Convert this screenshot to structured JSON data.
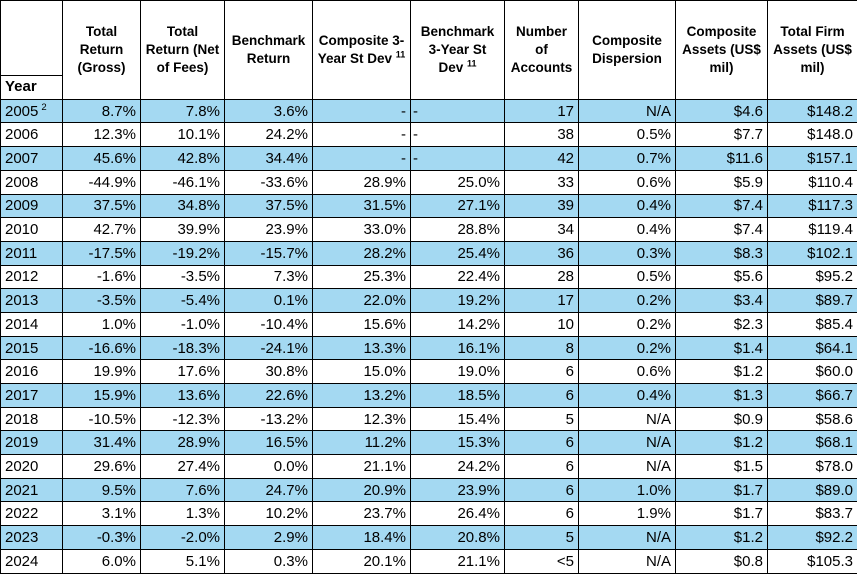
{
  "colors": {
    "row_highlight": "#a4d9f2",
    "border": "#000000",
    "text": "#000000",
    "background": "#ffffff"
  },
  "table": {
    "columns": [
      {
        "label": "Year",
        "sup": ""
      },
      {
        "label": "Total Return (Gross)",
        "sup": ""
      },
      {
        "label": "Total Return (Net of Fees)",
        "sup": ""
      },
      {
        "label": "Benchmark Return",
        "sup": ""
      },
      {
        "label": "Composite 3-Year St Dev",
        "sup": "11"
      },
      {
        "label": "Benchmark 3-Year St Dev",
        "sup": "11"
      },
      {
        "label": "Number of Accounts",
        "sup": ""
      },
      {
        "label": "Composite Dispersion",
        "sup": ""
      },
      {
        "label": "Composite Assets (US$ mil)",
        "sup": ""
      },
      {
        "label": "Total Firm Assets (US$ mil)",
        "sup": ""
      }
    ],
    "rows": [
      {
        "year": "2005",
        "year_sup": "2",
        "highlight": true,
        "cells": [
          "8.7%",
          "7.8%",
          "3.6%",
          "-",
          "-",
          "17",
          "N/A",
          "$4.6",
          "$148.2"
        ]
      },
      {
        "year": "2006",
        "year_sup": "",
        "highlight": false,
        "cells": [
          "12.3%",
          "10.1%",
          "24.2%",
          "-",
          "-",
          "38",
          "0.5%",
          "$7.7",
          "$148.0"
        ]
      },
      {
        "year": "2007",
        "year_sup": "",
        "highlight": true,
        "cells": [
          "45.6%",
          "42.8%",
          "34.4%",
          "-",
          "-",
          "42",
          "0.7%",
          "$11.6",
          "$157.1"
        ]
      },
      {
        "year": "2008",
        "year_sup": "",
        "highlight": false,
        "cells": [
          "-44.9%",
          "-46.1%",
          "-33.6%",
          "28.9%",
          "25.0%",
          "33",
          "0.6%",
          "$5.9",
          "$110.4"
        ]
      },
      {
        "year": "2009",
        "year_sup": "",
        "highlight": true,
        "cells": [
          "37.5%",
          "34.8%",
          "37.5%",
          "31.5%",
          "27.1%",
          "39",
          "0.4%",
          "$7.4",
          "$117.3"
        ]
      },
      {
        "year": "2010",
        "year_sup": "",
        "highlight": false,
        "cells": [
          "42.7%",
          "39.9%",
          "23.9%",
          "33.0%",
          "28.8%",
          "34",
          "0.4%",
          "$7.4",
          "$119.4"
        ]
      },
      {
        "year": "2011",
        "year_sup": "",
        "highlight": true,
        "cells": [
          "-17.5%",
          "-19.2%",
          "-15.7%",
          "28.2%",
          "25.4%",
          "36",
          "0.3%",
          "$8.3",
          "$102.1"
        ]
      },
      {
        "year": "2012",
        "year_sup": "",
        "highlight": false,
        "cells": [
          "-1.6%",
          "-3.5%",
          "7.3%",
          "25.3%",
          "22.4%",
          "28",
          "0.5%",
          "$5.6",
          "$95.2"
        ]
      },
      {
        "year": "2013",
        "year_sup": "",
        "highlight": true,
        "cells": [
          "-3.5%",
          "-5.4%",
          "0.1%",
          "22.0%",
          "19.2%",
          "17",
          "0.2%",
          "$3.4",
          "$89.7"
        ]
      },
      {
        "year": "2014",
        "year_sup": "",
        "highlight": false,
        "cells": [
          "1.0%",
          "-1.0%",
          "-10.4%",
          "15.6%",
          "14.2%",
          "10",
          "0.2%",
          "$2.3",
          "$85.4"
        ]
      },
      {
        "year": "2015",
        "year_sup": "",
        "highlight": true,
        "cells": [
          "-16.6%",
          "-18.3%",
          "-24.1%",
          "13.3%",
          "16.1%",
          "8",
          "0.2%",
          "$1.4",
          "$64.1"
        ]
      },
      {
        "year": "2016",
        "year_sup": "",
        "highlight": false,
        "cells": [
          "19.9%",
          "17.6%",
          "30.8%",
          "15.0%",
          "19.0%",
          "6",
          "0.6%",
          "$1.2",
          "$60.0"
        ]
      },
      {
        "year": "2017",
        "year_sup": "",
        "highlight": true,
        "cells": [
          "15.9%",
          "13.6%",
          "22.6%",
          "13.2%",
          "18.5%",
          "6",
          "0.4%",
          "$1.3",
          "$66.7"
        ]
      },
      {
        "year": "2018",
        "year_sup": "",
        "highlight": false,
        "cells": [
          "-10.5%",
          "-12.3%",
          "-13.2%",
          "12.3%",
          "15.4%",
          "5",
          "N/A",
          "$0.9",
          "$58.6"
        ]
      },
      {
        "year": "2019",
        "year_sup": "",
        "highlight": true,
        "cells": [
          "31.4%",
          "28.9%",
          "16.5%",
          "11.2%",
          "15.3%",
          "6",
          "N/A",
          "$1.2",
          "$68.1"
        ]
      },
      {
        "year": "2020",
        "year_sup": "",
        "highlight": false,
        "cells": [
          "29.6%",
          "27.4%",
          "0.0%",
          "21.1%",
          "24.2%",
          "6",
          "N/A",
          "$1.5",
          "$78.0"
        ]
      },
      {
        "year": "2021",
        "year_sup": "",
        "highlight": true,
        "cells": [
          "9.5%",
          "7.6%",
          "24.7%",
          "20.9%",
          "23.9%",
          "6",
          "1.0%",
          "$1.7",
          "$89.0"
        ]
      },
      {
        "year": "2022",
        "year_sup": "",
        "highlight": false,
        "cells": [
          "3.1%",
          "1.3%",
          "10.2%",
          "23.7%",
          "26.4%",
          "6",
          "1.9%",
          "$1.7",
          "$83.7"
        ]
      },
      {
        "year": "2023",
        "year_sup": "",
        "highlight": true,
        "cells": [
          "-0.3%",
          "-2.0%",
          "2.9%",
          "18.4%",
          "20.8%",
          "5",
          "N/A",
          "$1.2",
          "$92.2"
        ]
      },
      {
        "year": "2024",
        "year_sup": "",
        "highlight": false,
        "cells": [
          "6.0%",
          "5.1%",
          "0.3%",
          "20.1%",
          "21.1%",
          "<5",
          "N/A",
          "$0.8",
          "$105.3"
        ]
      }
    ]
  }
}
